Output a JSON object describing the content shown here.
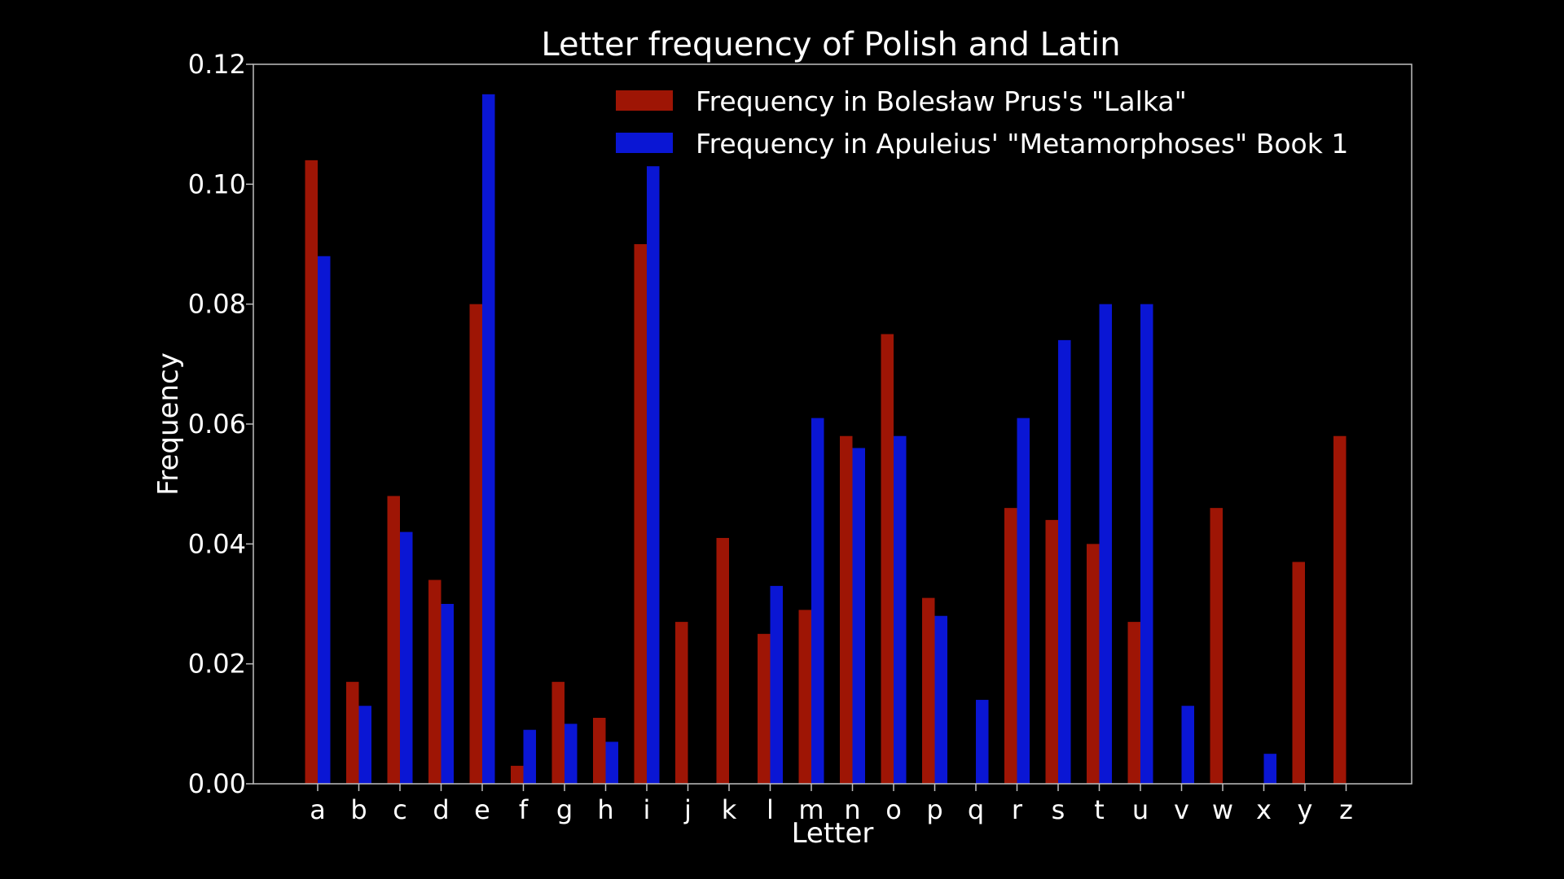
{
  "chart_data": {
    "type": "bar",
    "title": "Letter frequency of Polish and Latin",
    "xlabel": "Letter",
    "ylabel": "Frequency",
    "ylim": [
      0,
      0.12
    ],
    "yticks": [
      "0.00",
      "0.02",
      "0.04",
      "0.06",
      "0.08",
      "0.10",
      "0.12"
    ],
    "ytick_values": [
      0,
      0.02,
      0.04,
      0.06,
      0.08,
      0.1,
      0.12
    ],
    "grid": false,
    "legend_position": "top-right",
    "categories": [
      "a",
      "b",
      "c",
      "d",
      "e",
      "f",
      "g",
      "h",
      "i",
      "j",
      "k",
      "l",
      "m",
      "n",
      "o",
      "p",
      "q",
      "r",
      "s",
      "t",
      "u",
      "v",
      "w",
      "x",
      "y",
      "z"
    ],
    "series": [
      {
        "name": "Frequency in Bolesław Prus's \"Lalka\"",
        "color": "#9e1505",
        "values": [
          0.104,
          0.017,
          0.048,
          0.034,
          0.08,
          0.003,
          0.017,
          0.011,
          0.09,
          0.027,
          0.041,
          0.025,
          0.029,
          0.058,
          0.075,
          0.031,
          0,
          0.046,
          0.044,
          0.04,
          0.027,
          0,
          0.046,
          0,
          0.037,
          0.058
        ]
      },
      {
        "name": "Frequency in Apuleius' \"Metamorphoses\" Book 1",
        "color": "#0a16d4",
        "values": [
          0.088,
          0.013,
          0.042,
          0.03,
          0.115,
          0.009,
          0.01,
          0.007,
          0.103,
          0,
          0,
          0.033,
          0.061,
          0.056,
          0.058,
          0.028,
          0.014,
          0.061,
          0.074,
          0.08,
          0.08,
          0.013,
          0,
          0.005,
          0,
          0
        ]
      }
    ]
  }
}
